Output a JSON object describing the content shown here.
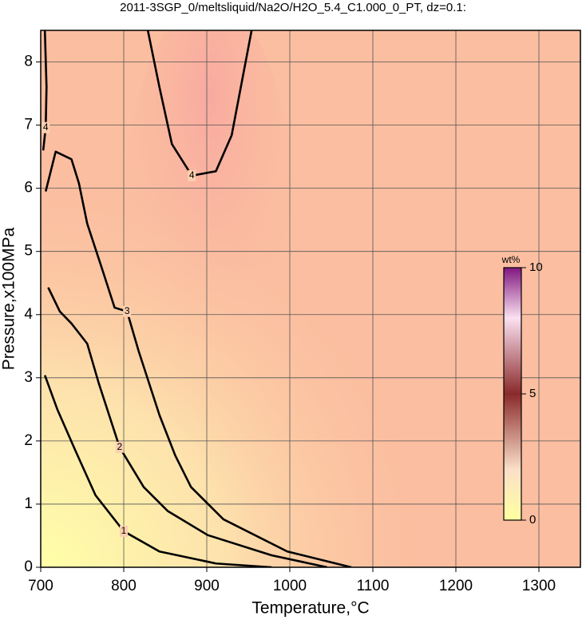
{
  "chart_data": {
    "type": "contour",
    "title": "2011-3SGP_0/meltsliquid/Na2O/H2O_5.4_C1.000_0_PT, dz=0.1:",
    "xlabel": "Temperature,°C",
    "ylabel": "Pressure,x100MPa",
    "xlim": [
      700,
      1350
    ],
    "ylim": [
      0,
      8.5
    ],
    "xticks": [
      700,
      800,
      900,
      1000,
      1100,
      1200,
      1300
    ],
    "yticks": [
      0,
      1,
      2,
      3,
      4,
      5,
      6,
      7,
      8
    ],
    "grid": true,
    "contours": [
      {
        "level": 1,
        "x": [
          705,
          720,
          742,
          766,
          800,
          843,
          911,
          978
        ],
        "y": [
          3.04,
          2.5,
          1.84,
          1.14,
          0.57,
          0.25,
          0.06,
          0
        ]
      },
      {
        "level": 2,
        "x": [
          709,
          723,
          737,
          756,
          770,
          795,
          824,
          853,
          901,
          978,
          1045
        ],
        "y": [
          4.43,
          4.05,
          3.86,
          3.54,
          2.91,
          1.9,
          1.27,
          0.89,
          0.51,
          0.19,
          0
        ]
      },
      {
        "level": 3,
        "x": [
          706,
          718,
          737,
          746,
          756,
          775,
          789,
          804,
          818,
          843,
          862,
          881,
          920,
          997,
          1074
        ],
        "y": [
          5.95,
          6.58,
          6.46,
          6.08,
          5.44,
          4.68,
          4.11,
          4.05,
          3.42,
          2.41,
          1.77,
          1.27,
          0.76,
          0.25,
          0
        ]
      },
      {
        "level": 4,
        "x": [
          829,
          843,
          858,
          882,
          911,
          930,
          954
        ],
        "y": [
          8.5,
          7.6,
          6.7,
          6.2,
          6.27,
          6.84,
          8.5
        ]
      },
      {
        "level": 4,
        "x": [
          705,
          707,
          706,
          703
        ],
        "y": [
          8.5,
          7.6,
          6.96,
          6.6
        ]
      }
    ],
    "colorbar": {
      "label": "wt%",
      "lim": [
        0,
        10
      ],
      "ticks": [
        0,
        5,
        10
      ]
    }
  }
}
